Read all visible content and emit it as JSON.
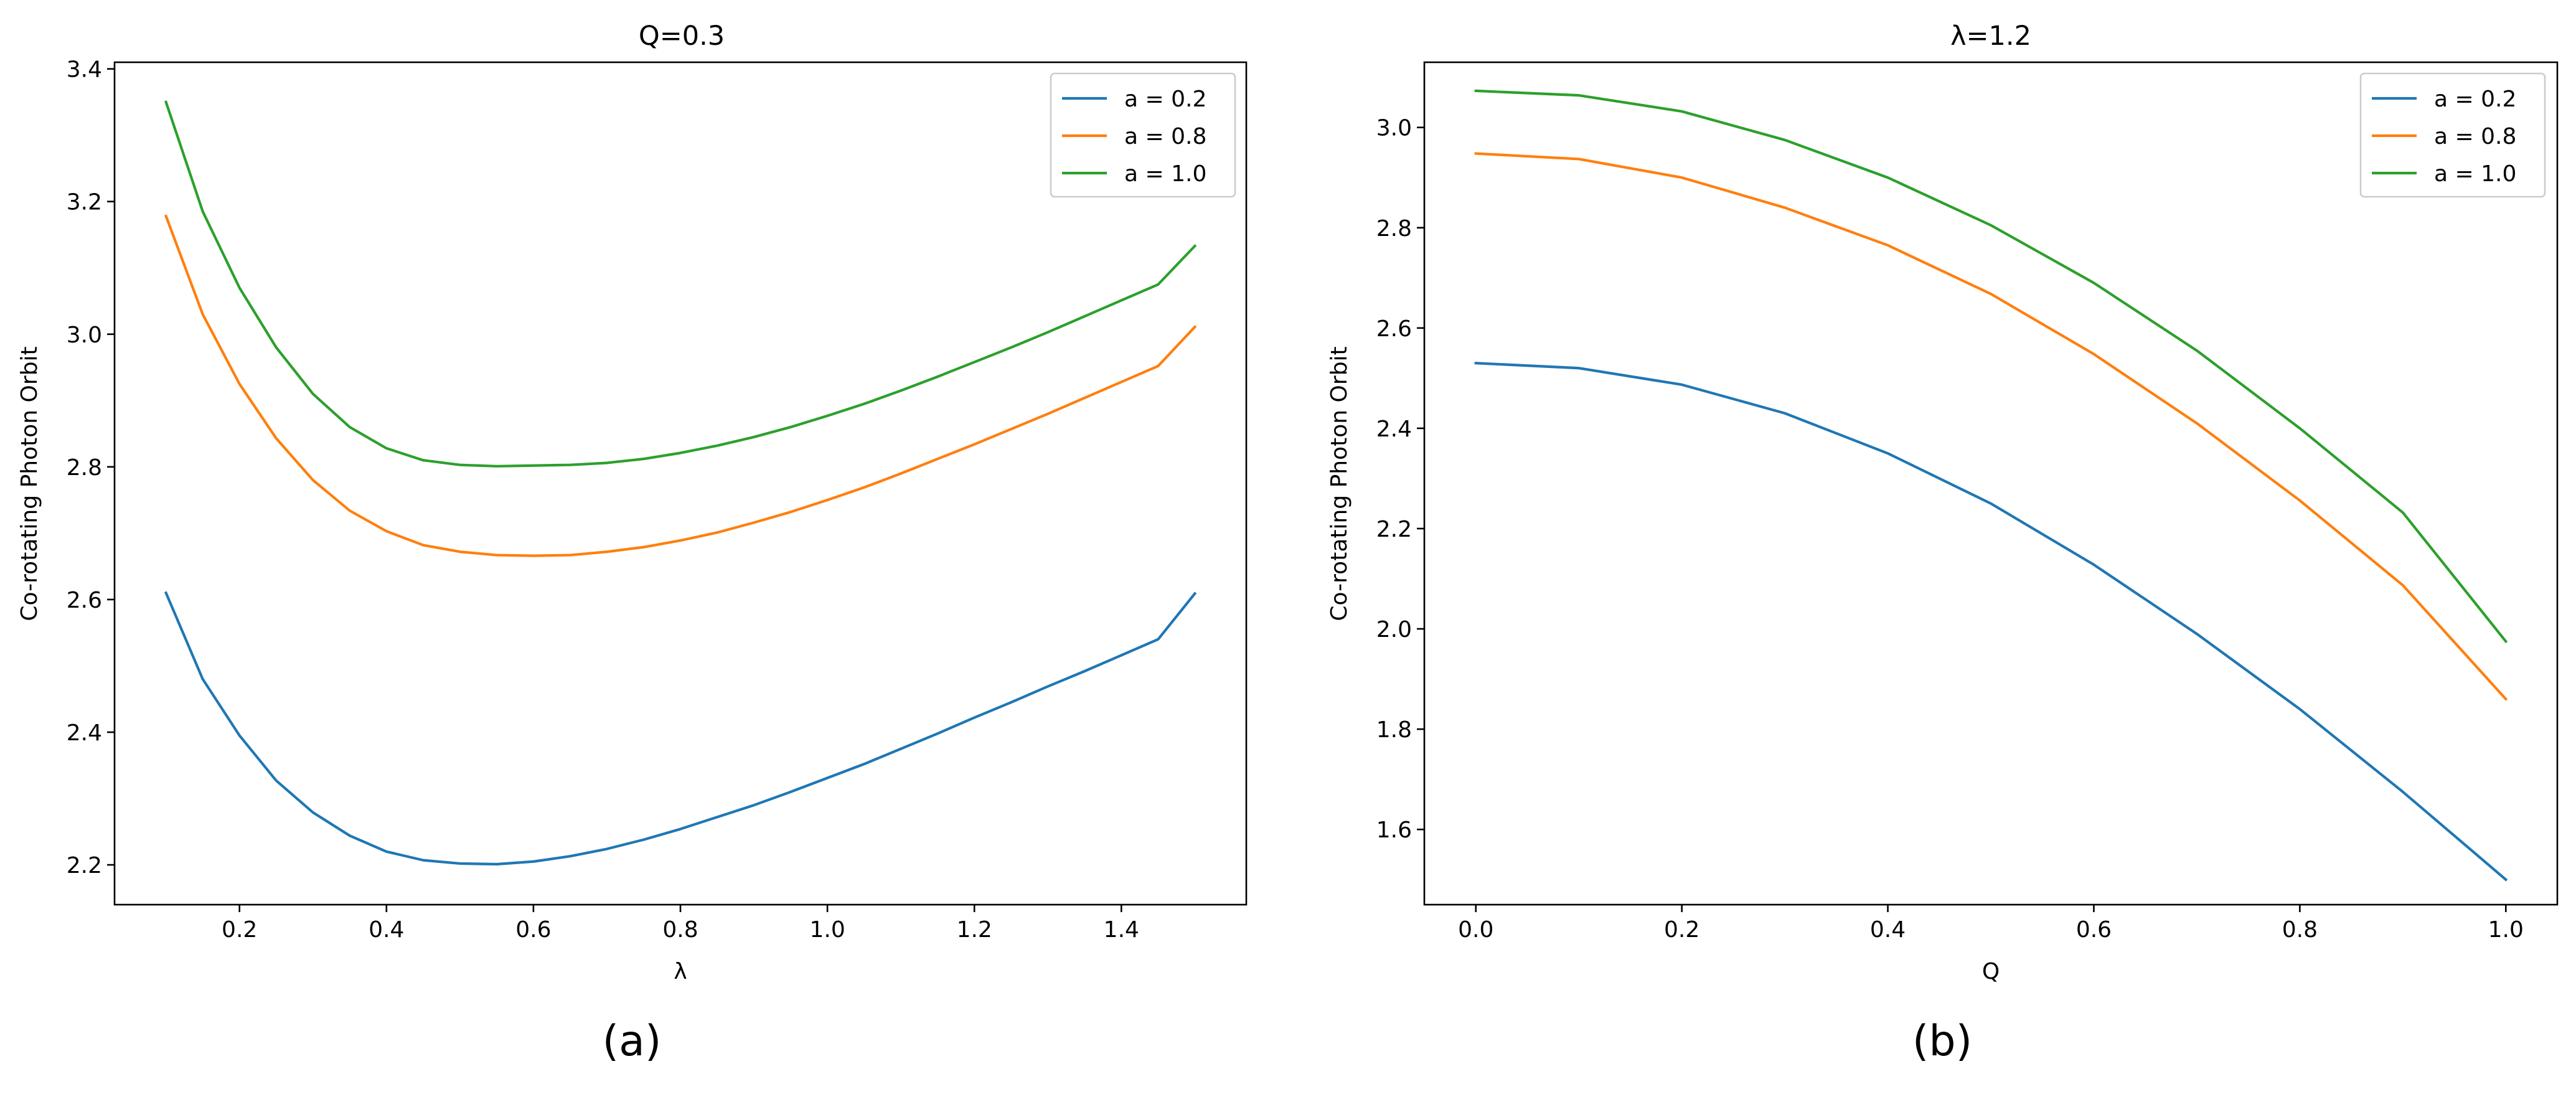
{
  "chart_data": [
    {
      "type": "line",
      "title": "Q=0.3",
      "xlabel": "λ",
      "ylabel": "Co-rotating Photon Orbit",
      "xlim": [
        0.03,
        1.57
      ],
      "ylim": [
        2.14,
        3.41
      ],
      "xticks": [
        0.2,
        0.4,
        0.6,
        0.8,
        1.0,
        1.2,
        1.4
      ],
      "xtick_labels": [
        "0.2",
        "0.4",
        "0.6",
        "0.8",
        "1.0",
        "1.2",
        "1.4"
      ],
      "yticks": [
        2.2,
        2.4,
        2.6,
        2.8,
        3.0,
        3.2,
        3.4
      ],
      "ytick_labels": [
        "2.2",
        "2.4",
        "2.6",
        "2.8",
        "3.0",
        "3.2",
        "3.4"
      ],
      "legend_position": "top-right",
      "caption": "(a)",
      "x": [
        0.1,
        0.15,
        0.2,
        0.25,
        0.3,
        0.35,
        0.4,
        0.45,
        0.5,
        0.55,
        0.6,
        0.65,
        0.7,
        0.75,
        0.8,
        0.85,
        0.9,
        0.95,
        1.0,
        1.05,
        1.1,
        1.15,
        1.2,
        1.25,
        1.3,
        1.35,
        1.4,
        1.45,
        1.5
      ],
      "series": [
        {
          "name": "a = 0.2",
          "color": "#1f77b4",
          "values": [
            2.61,
            2.48,
            2.395,
            2.327,
            2.279,
            2.244,
            2.22,
            2.207,
            2.202,
            2.201,
            2.205,
            2.213,
            2.224,
            2.238,
            2.254,
            2.272,
            2.29,
            2.31,
            2.331,
            2.352,
            2.375,
            2.398,
            2.422,
            2.445,
            2.469,
            2.492,
            2.516,
            2.54,
            2.609
          ]
        },
        {
          "name": "a = 0.8",
          "color": "#ff7f0e",
          "values": [
            3.178,
            3.03,
            2.925,
            2.843,
            2.78,
            2.734,
            2.703,
            2.682,
            2.672,
            2.667,
            2.666,
            2.667,
            2.672,
            2.679,
            2.689,
            2.701,
            2.716,
            2.732,
            2.75,
            2.769,
            2.79,
            2.812,
            2.834,
            2.857,
            2.88,
            2.904,
            2.928,
            2.952,
            3.011
          ]
        },
        {
          "name": "a = 1.0",
          "color": "#2ca02c",
          "values": [
            3.35,
            3.185,
            3.07,
            2.98,
            2.91,
            2.86,
            2.828,
            2.81,
            2.803,
            2.801,
            2.802,
            2.803,
            2.806,
            2.812,
            2.821,
            2.832,
            2.845,
            2.86,
            2.877,
            2.895,
            2.915,
            2.936,
            2.958,
            2.98,
            3.003,
            3.027,
            3.051,
            3.075,
            3.133
          ]
        }
      ]
    },
    {
      "type": "line",
      "title": "λ=1.2",
      "xlabel": "Q",
      "ylabel": "Co-rotating Photon Orbit",
      "xlim": [
        -0.05,
        1.05
      ],
      "ylim": [
        1.45,
        3.13
      ],
      "xticks": [
        0.0,
        0.2,
        0.4,
        0.6,
        0.8,
        1.0
      ],
      "xtick_labels": [
        "0.0",
        "0.2",
        "0.4",
        "0.6",
        "0.8",
        "1.0"
      ],
      "yticks": [
        1.6,
        1.8,
        2.0,
        2.2,
        2.4,
        2.6,
        2.8,
        3.0
      ],
      "ytick_labels": [
        "1.6",
        "1.8",
        "2.0",
        "2.2",
        "2.4",
        "2.6",
        "2.8",
        "3.0"
      ],
      "legend_position": "top-right",
      "caption": "(b)",
      "x": [
        0.0,
        0.1,
        0.2,
        0.3,
        0.4,
        0.5,
        0.6,
        0.7,
        0.8,
        0.9,
        1.0
      ],
      "series": [
        {
          "name": "a = 0.2",
          "color": "#1f77b4",
          "values": [
            2.53,
            2.52,
            2.487,
            2.43,
            2.35,
            2.25,
            2.128,
            1.99,
            1.84,
            1.675,
            1.5
          ]
        },
        {
          "name": "a = 0.8",
          "color": "#ff7f0e",
          "values": [
            2.948,
            2.937,
            2.9,
            2.84,
            2.765,
            2.668,
            2.548,
            2.41,
            2.256,
            2.087,
            1.86
          ]
        },
        {
          "name": "a = 1.0",
          "color": "#2ca02c",
          "values": [
            3.073,
            3.064,
            3.032,
            2.975,
            2.9,
            2.805,
            2.69,
            2.555,
            2.4,
            2.232,
            1.975
          ]
        }
      ]
    }
  ]
}
